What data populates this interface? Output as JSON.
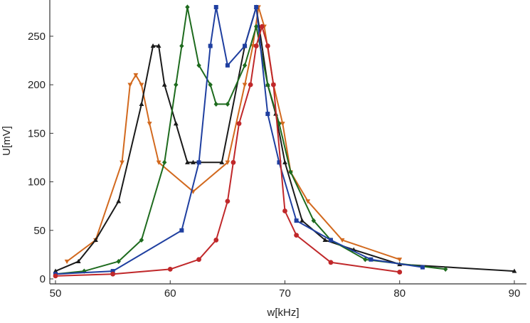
{
  "chart_data": {
    "type": "line",
    "title": "",
    "xlabel": "w[kHz]",
    "ylabel": "U[mV]",
    "xlim": [
      50,
      90
    ],
    "ylim": [
      0,
      280
    ],
    "grid": false,
    "x_ticks": [
      50,
      60,
      70,
      80,
      90
    ],
    "y_ticks": [
      0,
      50,
      100,
      150,
      200,
      250
    ],
    "series": [
      {
        "color": "#d2691e",
        "marker": "triangle-down",
        "x": [
          51,
          53.5,
          55.8,
          56.5,
          57,
          57.5,
          58.2,
          59,
          62,
          65,
          66.5,
          67.2,
          67.7,
          68.2,
          69,
          69.8,
          70.5,
          72,
          75,
          80
        ],
        "y": [
          18,
          40,
          120,
          200,
          210,
          200,
          160,
          120,
          90,
          120,
          200,
          240,
          280,
          260,
          200,
          160,
          110,
          80,
          40,
          20
        ]
      },
      {
        "color": "#1a1a1a",
        "marker": "triangle-up",
        "x": [
          50,
          52,
          53.5,
          55.5,
          57.5,
          58.5,
          59,
          59.5,
          60.5,
          61.5,
          62,
          64.5,
          66.5,
          67.5,
          68.5,
          69.2,
          70,
          71.5,
          73.5,
          76,
          80,
          90
        ],
        "y": [
          8,
          18,
          40,
          80,
          180,
          240,
          240,
          200,
          160,
          120,
          120,
          120,
          240,
          280,
          200,
          170,
          120,
          60,
          40,
          30,
          15,
          8
        ]
      },
      {
        "color": "#1e6b1e",
        "marker": "diamond",
        "x": [
          50,
          52.5,
          55.5,
          57.5,
          59.5,
          60.5,
          61,
          61.5,
          62.5,
          63.5,
          64,
          65,
          66.5,
          67.5,
          68.5,
          69.5,
          70.5,
          72.5,
          74,
          77,
          84
        ],
        "y": [
          5,
          8,
          18,
          40,
          120,
          200,
          240,
          280,
          220,
          200,
          180,
          180,
          220,
          260,
          200,
          160,
          110,
          60,
          40,
          20,
          10
        ]
      },
      {
        "color": "#1f3fa0",
        "marker": "square",
        "x": [
          50,
          55,
          61,
          62.5,
          63.5,
          64,
          65,
          66.5,
          67.5,
          68.5,
          69.5,
          71,
          74,
          77.5,
          82
        ],
        "y": [
          5,
          8,
          50,
          120,
          240,
          280,
          220,
          240,
          280,
          170,
          120,
          60,
          40,
          20,
          12
        ]
      },
      {
        "color": "#c0282a",
        "marker": "circle",
        "x": [
          50,
          55,
          60,
          62.5,
          64,
          65,
          65.5,
          66,
          67,
          67.5,
          68,
          68.5,
          69,
          70,
          71,
          74,
          80
        ],
        "y": [
          3,
          5,
          10,
          20,
          40,
          80,
          120,
          160,
          200,
          240,
          260,
          240,
          200,
          70,
          45,
          17,
          7
        ]
      }
    ]
  }
}
